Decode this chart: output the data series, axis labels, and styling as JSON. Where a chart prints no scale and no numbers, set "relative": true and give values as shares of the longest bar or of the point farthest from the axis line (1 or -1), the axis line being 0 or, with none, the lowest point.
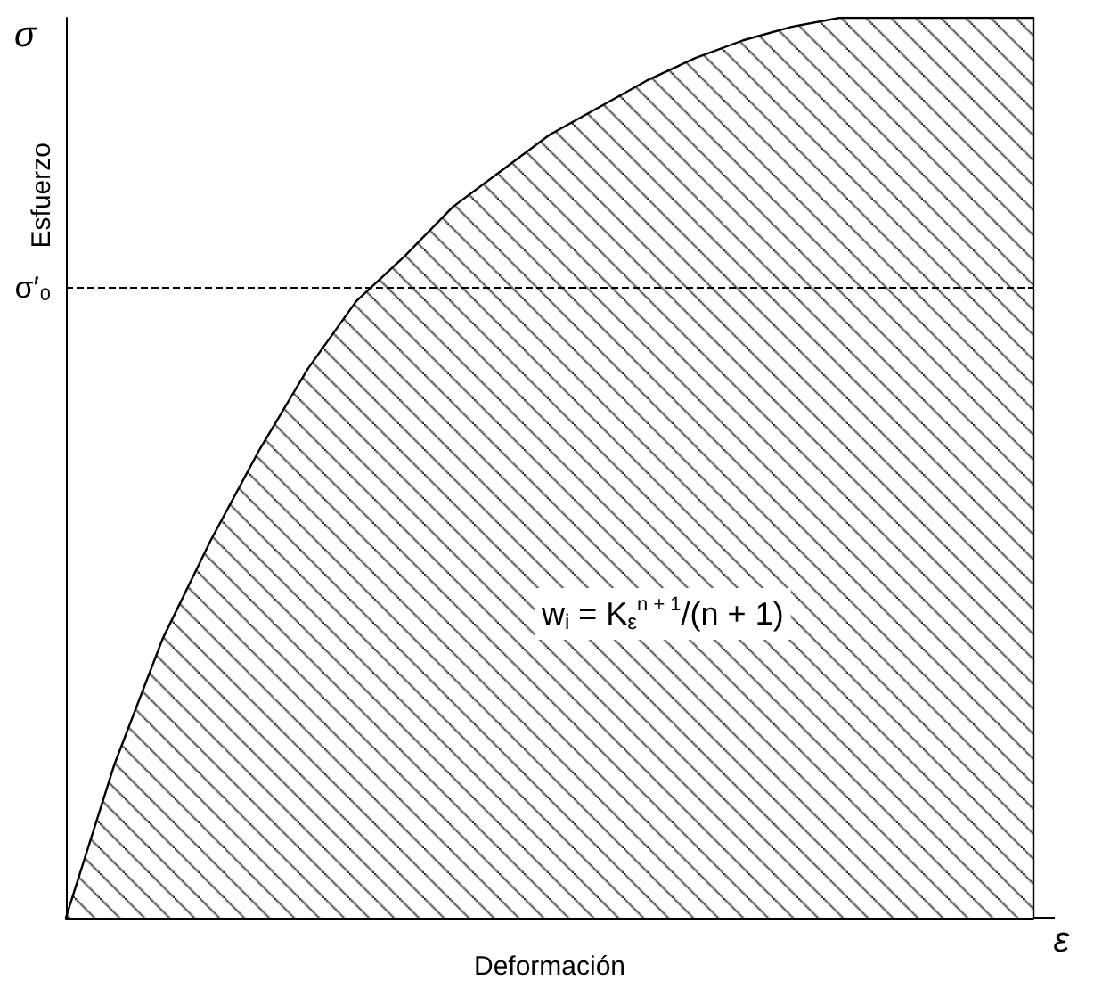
{
  "chart_data": {
    "type": "area",
    "relative": true,
    "xlabel": "Deformación",
    "ylabel": "Esfuerzo",
    "categories": [
      null,
      null,
      null,
      null,
      null,
      null,
      null,
      null,
      null,
      null,
      null,
      null,
      null,
      null,
      null,
      null,
      null,
      null,
      null,
      null,
      null
    ],
    "series": [
      {
        "color": "#000000",
        "values": [
          0,
          0.17,
          0.31,
          0.42,
          0.52,
          0.61,
          0.685,
          0.735,
          0.79,
          0.83,
          0.87,
          0.9,
          0.93,
          0.955,
          0.975,
          0.99,
          1,
          1,
          1,
          1,
          1
        ]
      }
    ],
    "ref_lines": [
      {
        "axis": "y",
        "value": 0.7,
        "label": "σ′₀",
        "line_style": "dashed",
        "color": "#000000"
      }
    ],
    "annotations": [
      "w$_{i}$ = K$_{ε}$$^{n + 1}$/(n + 1)",
      "σ",
      "ε"
    ],
    "marker": "none",
    "line_style": "solid"
  }
}
